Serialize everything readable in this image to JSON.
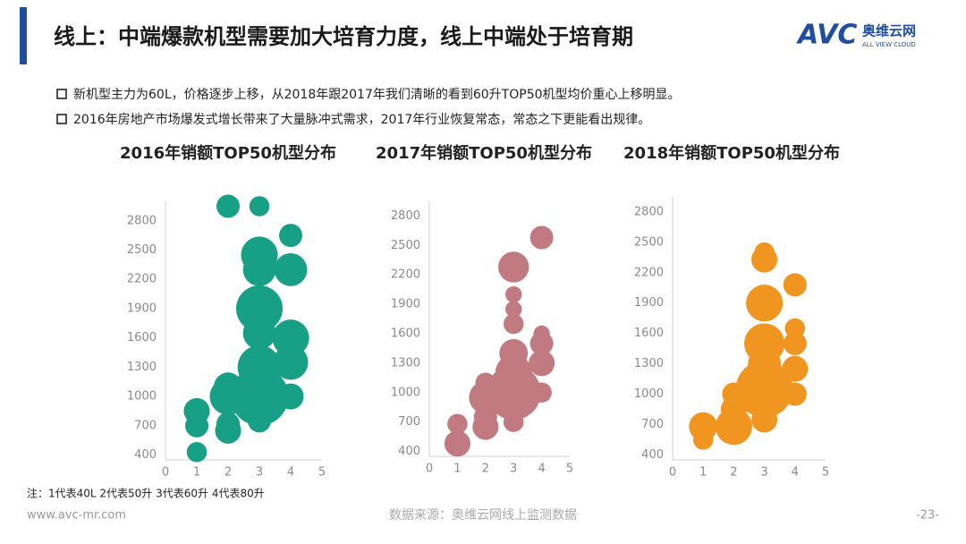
{
  "header": {
    "title": "线上：中端爆款机型需要加大培育力度，线上中端处于培育期",
    "logo": "AVC",
    "logo_cn": "奥维云网",
    "logo_en": "ALL VIEW CLOUD"
  },
  "bullets": [
    "新机型主力为60L，价格逐步上移，从2018年跟2017年我们清晰的看到60升TOP50机型均价重心上移明显。",
    "2016年房地产市场爆发式增长带来了大量脉冲式需求，2017年行业恢复常态，常态之下更能看出规律。"
  ],
  "chart_data": [
    {
      "type": "bubble",
      "title": "2016年销额TOP50机型分布",
      "color": "#17a086",
      "x": [
        1,
        1,
        1,
        2,
        2,
        2,
        2,
        2,
        3,
        3,
        3,
        3,
        3,
        3,
        3,
        3,
        4,
        4,
        4,
        4,
        4
      ],
      "y": [
        430,
        700,
        850,
        650,
        720,
        1000,
        1100,
        2950,
        2950,
        750,
        1000,
        1300,
        1650,
        1900,
        2300,
        2450,
        2650,
        2300,
        1600,
        1350,
        1000
      ],
      "sizes": [
        3,
        4,
        5,
        5,
        4,
        10,
        6,
        4,
        3,
        4,
        25,
        14,
        8,
        16,
        8,
        10,
        4,
        8,
        10,
        9,
        5
      ],
      "xlim": [
        0,
        5
      ],
      "xticks": [
        0,
        1,
        2,
        3,
        4,
        5
      ],
      "ylim": [
        350,
        3000
      ],
      "yticks": [
        400,
        700,
        1000,
        1300,
        1600,
        1900,
        2200,
        2500,
        2800
      ]
    },
    {
      "type": "bubble",
      "title": "2017年销额TOP50机型分布",
      "color": "#c07a80",
      "x": [
        1,
        1,
        2,
        2,
        2,
        2,
        3,
        3,
        3,
        3,
        3,
        3,
        3,
        3,
        4,
        4,
        4,
        4,
        4
      ],
      "y": [
        480,
        680,
        650,
        750,
        950,
        1100,
        700,
        1000,
        1200,
        1400,
        1700,
        1850,
        2000,
        2280,
        2580,
        1600,
        1500,
        1300,
        1000
      ],
      "sizes": [
        5,
        3,
        5,
        4,
        8,
        3,
        3,
        22,
        10,
        6,
        3,
        2,
        2,
        7,
        4,
        2,
        4,
        5,
        3
      ],
      "xlim": [
        0,
        5
      ],
      "xticks": [
        0,
        1,
        2,
        3,
        4,
        5
      ],
      "ylim": [
        350,
        2950
      ],
      "yticks": [
        400,
        700,
        1000,
        1300,
        1600,
        1900,
        2200,
        2500,
        2800
      ]
    },
    {
      "type": "bubble",
      "title": "2018年销额TOP50机型分布",
      "color": "#f0951f",
      "x": [
        1,
        1,
        2,
        2,
        2,
        3,
        3,
        3,
        3,
        3,
        3,
        3,
        4,
        4,
        4,
        4,
        4
      ],
      "y": [
        550,
        680,
        680,
        850,
        1000,
        750,
        1050,
        1300,
        1500,
        1900,
        2330,
        2400,
        2080,
        1650,
        1500,
        1250,
        1000
      ],
      "sizes": [
        3,
        6,
        10,
        5,
        4,
        5,
        24,
        8,
        12,
        10,
        5,
        3,
        4,
        3,
        4,
        5,
        4
      ],
      "xlim": [
        0,
        5
      ],
      "xticks": [
        0,
        1,
        2,
        3,
        4,
        5
      ],
      "ylim": [
        350,
        2950
      ],
      "yticks": [
        400,
        700,
        1000,
        1300,
        1600,
        1900,
        2200,
        2500,
        2800
      ]
    }
  ],
  "note": "注：1代表40L 2代表50升 3代表60升 4代表80升",
  "footer": {
    "url": "www.avc-mr.com",
    "source": "数据来源：奥维云网线上监测数据",
    "page": "-23-"
  }
}
